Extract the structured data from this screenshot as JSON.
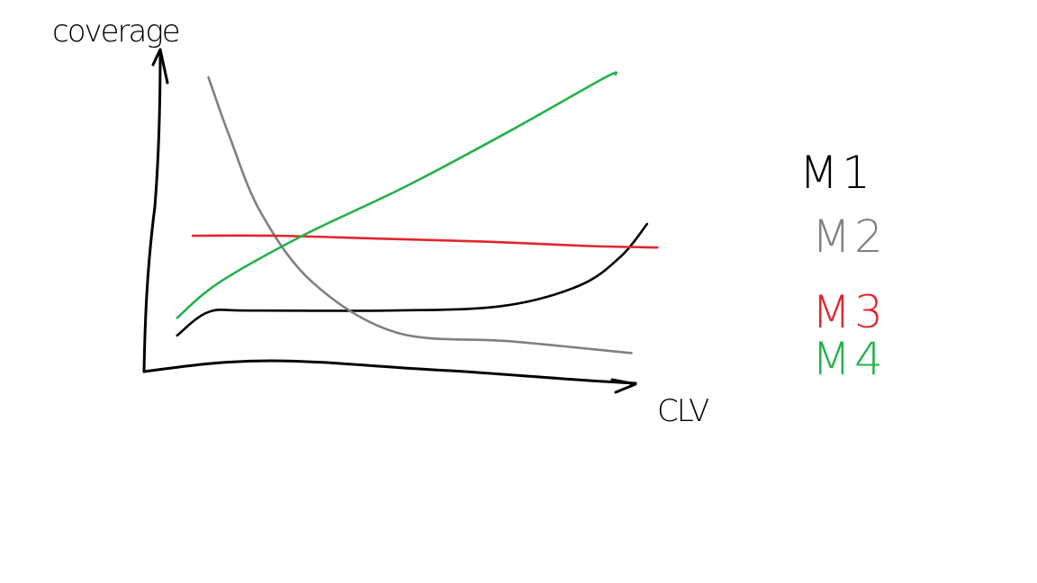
{
  "chart_data": {
    "type": "line",
    "title": "",
    "xlabel": "CLV",
    "ylabel": "coverage",
    "grid": false,
    "legend_placement": "right",
    "xlim": [
      0,
      10
    ],
    "ylim": [
      0,
      10
    ],
    "series": [
      {
        "name": "M1",
        "color": "#000000",
        "x": [
          0.6,
          1.2,
          2.0,
          4.6,
          6.8,
          8.3,
          9.1,
          9.6
        ],
        "y": [
          1.2,
          2.0,
          2.05,
          2.05,
          2.2,
          2.9,
          3.9,
          5.0
        ]
      },
      {
        "name": "M2",
        "color": "#808080",
        "x": [
          1.2,
          1.6,
          2.2,
          3.2,
          4.8,
          7.0,
          9.3
        ],
        "y": [
          10.0,
          8.0,
          5.4,
          3.0,
          1.3,
          1.0,
          0.6
        ]
      },
      {
        "name": "M3",
        "color": "#e0262b",
        "x": [
          0.9,
          2.5,
          4.5,
          6.5,
          8.5,
          9.8
        ],
        "y": [
          4.6,
          4.6,
          4.5,
          4.4,
          4.25,
          4.2
        ]
      },
      {
        "name": "M4",
        "color": "#22b14c",
        "x": [
          0.6,
          1.4,
          3.0,
          5.0,
          7.0,
          8.8,
          9.0
        ],
        "y": [
          1.8,
          3.0,
          4.6,
          6.3,
          8.2,
          10.0,
          10.1
        ]
      }
    ]
  }
}
